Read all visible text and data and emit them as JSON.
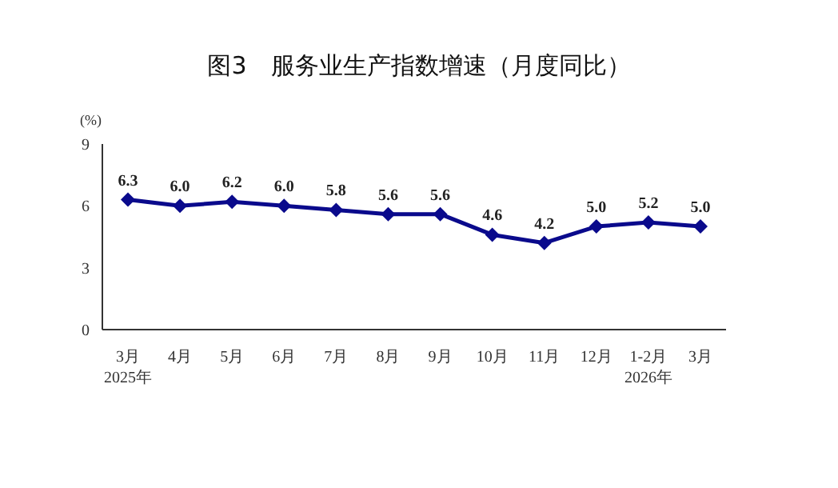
{
  "chart_data": {
    "type": "line",
    "title": "图3　服务业生产指数增速（月度同比）",
    "ylabel": "(%)",
    "categories": [
      "3月\n2025年",
      "4月",
      "5月",
      "6月",
      "7月",
      "8月",
      "9月",
      "10月",
      "11月",
      "12月",
      "1-2月\n2026年",
      "3月"
    ],
    "series": [
      {
        "color": "#0a0a8c",
        "values": [
          6.3,
          6.0,
          6.2,
          6.0,
          5.8,
          5.6,
          5.6,
          4.6,
          4.2,
          5.0,
          5.2,
          5.0
        ],
        "value_labels": [
          "6.3",
          "6.0",
          "6.2",
          "6.0",
          "5.8",
          "5.6",
          "5.6",
          "4.6",
          "4.2",
          "5.0",
          "5.2",
          "5.0"
        ]
      }
    ],
    "ylim": [
      0,
      9
    ],
    "yticks": [
      0,
      3,
      6,
      9
    ],
    "grid": false,
    "legend": false,
    "marker": "diamond",
    "line_style": "solid"
  }
}
